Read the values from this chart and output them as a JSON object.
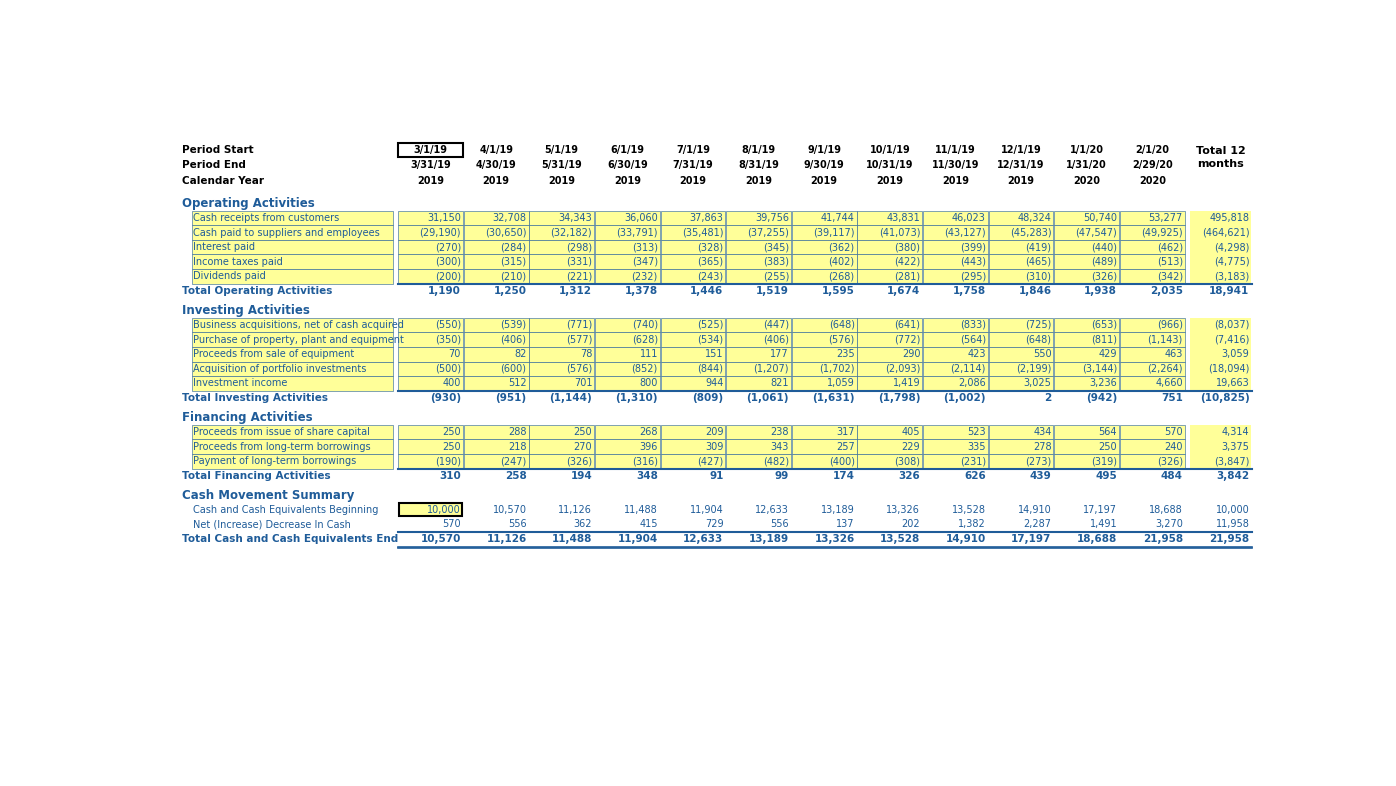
{
  "bg_color": "#FFFFFF",
  "black": "#000000",
  "blue": "#1F5C99",
  "yellow_bg": "#FFFF99",
  "period_start_labels": [
    "3/1/19",
    "4/1/19",
    "5/1/19",
    "6/1/19",
    "7/1/19",
    "8/1/19",
    "9/1/19",
    "10/1/19",
    "11/1/19",
    "12/1/19",
    "1/1/20",
    "2/1/20"
  ],
  "period_end_labels": [
    "3/31/19",
    "4/30/19",
    "5/31/19",
    "6/30/19",
    "7/31/19",
    "8/31/19",
    "9/30/19",
    "10/31/19",
    "11/30/19",
    "12/31/19",
    "1/31/20",
    "2/29/20"
  ],
  "cal_year_labels": [
    "2019",
    "2019",
    "2019",
    "2019",
    "2019",
    "2019",
    "2019",
    "2019",
    "2019",
    "2019",
    "2020",
    "2020"
  ],
  "sections": [
    {
      "name": "Operating Activities",
      "rows": [
        {
          "label": "Cash receipts from customers",
          "values": [
            31150,
            32708,
            34343,
            36060,
            37863,
            39756,
            41744,
            43831,
            46023,
            48324,
            50740,
            53277
          ],
          "total": 495818,
          "yellow": true,
          "box_first": false
        },
        {
          "label": "Cash paid to suppliers and employees",
          "values": [
            -29190,
            -30650,
            -32182,
            -33791,
            -35481,
            -37255,
            -39117,
            -41073,
            -43127,
            -45283,
            -47547,
            -49925
          ],
          "total": -464621,
          "yellow": true,
          "box_first": false
        },
        {
          "label": "Interest paid",
          "values": [
            -270,
            -284,
            -298,
            -313,
            -328,
            -345,
            -362,
            -380,
            -399,
            -419,
            -440,
            -462
          ],
          "total": -4298,
          "yellow": true,
          "box_first": false
        },
        {
          "label": "Income taxes paid",
          "values": [
            -300,
            -315,
            -331,
            -347,
            -365,
            -383,
            -402,
            -422,
            -443,
            -465,
            -489,
            -513
          ],
          "total": -4775,
          "yellow": true,
          "box_first": false
        },
        {
          "label": "Dividends paid",
          "values": [
            -200,
            -210,
            -221,
            -232,
            -243,
            -255,
            -268,
            -281,
            -295,
            -310,
            -326,
            -342
          ],
          "total": -3183,
          "yellow": true,
          "box_first": false
        }
      ],
      "total_label": "Total Operating Activities",
      "totals": [
        1190,
        1250,
        1312,
        1378,
        1446,
        1519,
        1595,
        1674,
        1758,
        1846,
        1938,
        2035
      ],
      "grand_total": 18941
    },
    {
      "name": "Investing Activities",
      "rows": [
        {
          "label": "Business acquisitions, net of cash acquired",
          "values": [
            -550,
            -539,
            -771,
            -740,
            -525,
            -447,
            -648,
            -641,
            -833,
            -725,
            -653,
            -966
          ],
          "total": -8037,
          "yellow": true,
          "box_first": false
        },
        {
          "label": "Purchase of property, plant and equipment",
          "values": [
            -350,
            -406,
            -577,
            -628,
            -534,
            -406,
            -576,
            -772,
            -564,
            -648,
            -811,
            -1143
          ],
          "total": -7416,
          "yellow": true,
          "box_first": false
        },
        {
          "label": "Proceeds from sale of equipment",
          "values": [
            70,
            82,
            78,
            111,
            151,
            177,
            235,
            290,
            423,
            550,
            429,
            463
          ],
          "total": 3059,
          "yellow": true,
          "box_first": false
        },
        {
          "label": "Acquisition of portfolio investments",
          "values": [
            -500,
            -600,
            -576,
            -852,
            -844,
            -1207,
            -1702,
            -2093,
            -2114,
            -2199,
            -3144,
            -2264
          ],
          "total": -18094,
          "yellow": true,
          "box_first": false
        },
        {
          "label": "Investment income",
          "values": [
            400,
            512,
            701,
            800,
            944,
            821,
            1059,
            1419,
            2086,
            3025,
            3236,
            4660
          ],
          "total": 19663,
          "yellow": true,
          "box_first": false
        }
      ],
      "total_label": "Total Investing Activities",
      "totals": [
        -930,
        -951,
        -1144,
        -1310,
        -809,
        -1061,
        -1631,
        -1798,
        -1002,
        2,
        -942,
        751
      ],
      "grand_total": -10825
    },
    {
      "name": "Financing Activities",
      "rows": [
        {
          "label": "Proceeds from issue of share capital",
          "values": [
            250,
            288,
            250,
            268,
            209,
            238,
            317,
            405,
            523,
            434,
            564,
            570
          ],
          "total": 4314,
          "yellow": true,
          "box_first": false
        },
        {
          "label": "Proceeds from long-term borrowings",
          "values": [
            250,
            218,
            270,
            396,
            309,
            343,
            257,
            229,
            335,
            278,
            250,
            240
          ],
          "total": 3375,
          "yellow": true,
          "box_first": false
        },
        {
          "label": "Payment of long-term borrowings",
          "values": [
            -190,
            -247,
            -326,
            -316,
            -427,
            -482,
            -400,
            -308,
            -231,
            -273,
            -319,
            -326
          ],
          "total": -3847,
          "yellow": true,
          "box_first": false
        }
      ],
      "total_label": "Total Financing Activities",
      "totals": [
        310,
        258,
        194,
        348,
        91,
        99,
        174,
        326,
        626,
        439,
        495,
        484
      ],
      "grand_total": 3842
    },
    {
      "name": "Cash Movement Summary",
      "rows": [
        {
          "label": "Cash and Cash Equivalents Beginning",
          "values": [
            10000,
            10570,
            11126,
            11488,
            11904,
            12633,
            13189,
            13326,
            13528,
            14910,
            17197,
            18688
          ],
          "total": 10000,
          "yellow": false,
          "box_first": true
        },
        {
          "label": "Net (Increase) Decrease In Cash",
          "values": [
            570,
            556,
            362,
            415,
            729,
            556,
            137,
            202,
            1382,
            2287,
            1491,
            3270
          ],
          "total": 11958,
          "yellow": false,
          "box_first": false
        }
      ],
      "total_label": "Total Cash and Cash Equivalents End",
      "totals": [
        10570,
        11126,
        11488,
        11904,
        12633,
        13189,
        13326,
        13528,
        14910,
        17197,
        18688,
        21958
      ],
      "grand_total": 21958
    }
  ]
}
